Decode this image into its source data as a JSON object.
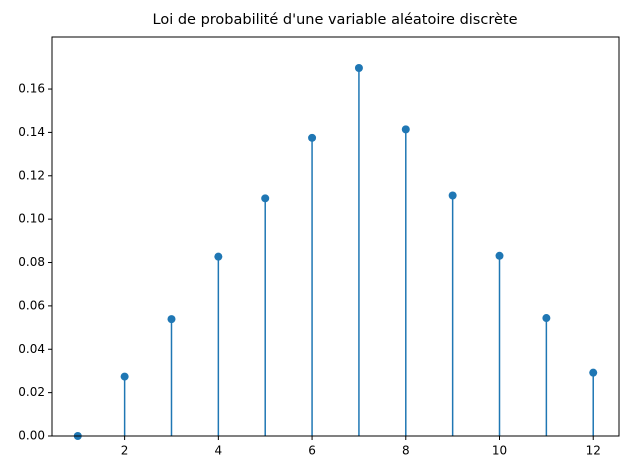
{
  "chart_data": {
    "type": "stem",
    "title": "Loi de probabilité d'une variable aléatoire discrète",
    "x": [
      1,
      2,
      3,
      4,
      5,
      6,
      7,
      8,
      9,
      10,
      11,
      12
    ],
    "values": [
      0,
      0.0274,
      0.0539,
      0.0827,
      0.1096,
      0.1375,
      0.1697,
      0.1414,
      0.1109,
      0.0831,
      0.0544,
      0.0292
    ],
    "color": "#1f77b4",
    "xlim": [
      0.45,
      12.55
    ],
    "ylim": [
      0,
      0.184
    ],
    "xticks": [
      2,
      4,
      6,
      8,
      10,
      12
    ],
    "yticks": [
      {
        "value": 0,
        "label": "0.00"
      },
      {
        "value": 0.02,
        "label": "0.02"
      },
      {
        "value": 0.04,
        "label": "0.04"
      },
      {
        "value": 0.06,
        "label": "0.06"
      },
      {
        "value": 0.08,
        "label": "0.08"
      },
      {
        "value": 0.1,
        "label": "0.10"
      },
      {
        "value": 0.12,
        "label": "0.12"
      },
      {
        "value": 0.14,
        "label": "0.14"
      },
      {
        "value": 0.16,
        "label": "0.16"
      }
    ]
  }
}
